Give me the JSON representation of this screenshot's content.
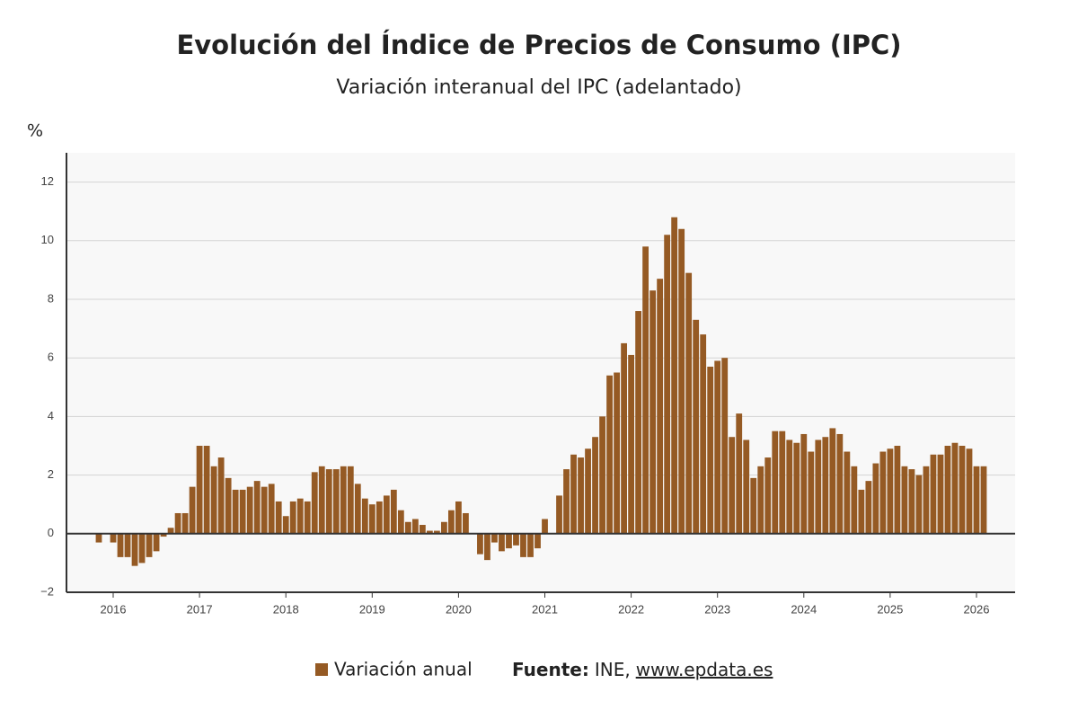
{
  "chart_data": {
    "type": "bar",
    "title": "Evolución del Índice de Precios de Consumo (IPC)",
    "subtitle": "Variación interanual del IPC (adelantado)",
    "y_label": "%",
    "series": [
      {
        "name": "Variación anual",
        "color": "#955a24",
        "values": [
          -0.3,
          0.0,
          -0.3,
          -0.8,
          -0.8,
          -1.1,
          -1.0,
          -0.8,
          -0.6,
          -0.1,
          0.2,
          0.7,
          0.7,
          1.6,
          3.0,
          3.0,
          2.3,
          2.6,
          1.9,
          1.5,
          1.5,
          1.6,
          1.8,
          1.6,
          1.7,
          1.1,
          0.6,
          1.1,
          1.2,
          1.1,
          2.1,
          2.3,
          2.2,
          2.2,
          2.3,
          2.3,
          1.7,
          1.2,
          1.0,
          1.1,
          1.3,
          1.5,
          0.8,
          0.4,
          0.5,
          0.3,
          0.1,
          0.1,
          0.4,
          0.8,
          1.1,
          0.7,
          0.0,
          -0.7,
          -0.9,
          -0.3,
          -0.6,
          -0.5,
          -0.4,
          -0.8,
          -0.8,
          -0.5,
          0.5,
          0.0,
          1.3,
          2.2,
          2.7,
          2.6,
          2.9,
          3.3,
          4.0,
          5.4,
          5.5,
          6.5,
          6.1,
          7.6,
          9.8,
          8.3,
          8.7,
          10.2,
          10.8,
          10.4,
          8.9,
          7.3,
          6.8,
          5.7,
          5.9,
          6.0,
          3.3,
          4.1,
          3.2,
          1.9,
          2.3,
          2.6,
          3.5,
          3.5,
          3.2,
          3.1,
          3.4,
          2.8,
          3.2,
          3.3,
          3.6,
          3.4,
          2.8,
          2.3,
          1.5,
          1.8,
          2.4,
          2.8,
          2.9,
          3.0,
          2.3,
          2.2,
          2.0,
          2.3,
          2.7,
          2.7,
          3.0,
          3.1,
          3.0,
          2.9,
          2.3,
          2.3
        ]
      }
    ],
    "categories": [
      null,
      null,
      "2016",
      null,
      null,
      null,
      null,
      null,
      null,
      null,
      null,
      null,
      null,
      null,
      "2017",
      null,
      null,
      null,
      null,
      null,
      null,
      null,
      null,
      null,
      null,
      null,
      "2018",
      null,
      null,
      null,
      null,
      null,
      null,
      null,
      null,
      null,
      null,
      null,
      "2019",
      null,
      null,
      null,
      null,
      null,
      null,
      null,
      null,
      null,
      null,
      null,
      "2020",
      null,
      null,
      null,
      null,
      null,
      null,
      null,
      null,
      null,
      null,
      null,
      "2021",
      null,
      null,
      null,
      null,
      null,
      null,
      null,
      null,
      null,
      null,
      null,
      "2022",
      null,
      null,
      null,
      null,
      null,
      null,
      null,
      null,
      null,
      null,
      null,
      "2023",
      null,
      null,
      null,
      null,
      null,
      null,
      null,
      null,
      null,
      null,
      null,
      "2024",
      null,
      null,
      null,
      null,
      null,
      null,
      null,
      null,
      null,
      null,
      null,
      "2025",
      null,
      null,
      null,
      null,
      null,
      null,
      null,
      null,
      null,
      null,
      null,
      "2026",
      null
    ],
    "ylim": [
      -2,
      13
    ],
    "yticks": [
      {
        "value": -2,
        "label": "−2"
      },
      0,
      2,
      4,
      6,
      8,
      10,
      12
    ],
    "grid": true,
    "source_label": "Fuente:",
    "source": "INE,",
    "source_link": "www.epdata.es"
  }
}
